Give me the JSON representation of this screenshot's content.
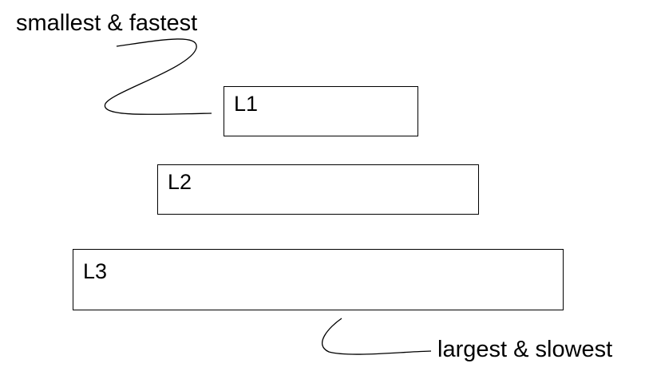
{
  "annotations": {
    "top": "smallest & fastest",
    "bottom": "largest & slowest"
  },
  "levels": [
    {
      "label": "L1"
    },
    {
      "label": "L2"
    },
    {
      "label": "L3"
    }
  ],
  "colors": {
    "stroke": "#000000",
    "background": "#ffffff"
  }
}
